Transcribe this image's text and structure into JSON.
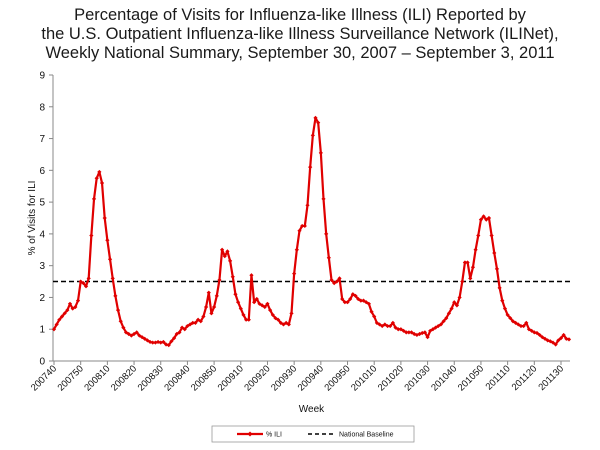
{
  "chart_data": {
    "type": "line",
    "title_lines": [
      "Percentage of Visits for Influenza-like Illness (ILI) Reported by",
      "the U.S. Outpatient Influenza-like Illness Surveillance Network (ILINet),",
      "Weekly National Summary, September 30, 2007 – September 3, 2011"
    ],
    "xlabel": "Week",
    "ylabel": "% of Visits for ILI",
    "ylim": [
      0,
      9
    ],
    "yticks": [
      0,
      1,
      2,
      3,
      4,
      5,
      6,
      7,
      8,
      9
    ],
    "xticks": [
      "200740",
      "200750",
      "200810",
      "200820",
      "200830",
      "200840",
      "200850",
      "200910",
      "200920",
      "200930",
      "200940",
      "200950",
      "201010",
      "201020",
      "201030",
      "201040",
      "201050",
      "201110",
      "201120",
      "201130"
    ],
    "grid": false,
    "legend_position": "bottom",
    "series": [
      {
        "name": "% ILI",
        "color": "#e00000",
        "marker": "diamond",
        "values": [
          1.0,
          1.15,
          1.3,
          1.4,
          1.5,
          1.6,
          1.8,
          1.65,
          1.7,
          1.9,
          2.5,
          2.45,
          2.35,
          2.6,
          3.95,
          5.1,
          5.75,
          5.95,
          5.6,
          4.5,
          3.8,
          3.2,
          2.6,
          2.05,
          1.6,
          1.25,
          1.05,
          0.9,
          0.85,
          0.8,
          0.85,
          0.9,
          0.8,
          0.75,
          0.7,
          0.65,
          0.6,
          0.58,
          0.58,
          0.6,
          0.58,
          0.6,
          0.52,
          0.5,
          0.62,
          0.72,
          0.85,
          0.9,
          1.05,
          1.0,
          1.1,
          1.15,
          1.2,
          1.2,
          1.3,
          1.25,
          1.4,
          1.7,
          2.15,
          1.5,
          1.7,
          2.05,
          2.55,
          3.5,
          3.3,
          3.45,
          3.15,
          2.65,
          2.1,
          1.85,
          1.65,
          1.45,
          1.3,
          1.3,
          2.7,
          1.85,
          1.95,
          1.8,
          1.75,
          1.7,
          1.8,
          1.6,
          1.45,
          1.35,
          1.3,
          1.2,
          1.15,
          1.2,
          1.15,
          1.5,
          2.75,
          3.5,
          4.1,
          4.25,
          4.25,
          4.9,
          6.1,
          7.1,
          7.65,
          7.5,
          6.55,
          5.1,
          4.0,
          3.25,
          2.55,
          2.45,
          2.5,
          2.6,
          1.95,
          1.85,
          1.85,
          1.95,
          2.1,
          2.05,
          1.95,
          1.9,
          1.9,
          1.85,
          1.8,
          1.55,
          1.4,
          1.2,
          1.15,
          1.1,
          1.15,
          1.1,
          1.1,
          1.2,
          1.05,
          1.0,
          1.0,
          0.95,
          0.9,
          0.9,
          0.9,
          0.85,
          0.82,
          0.85,
          0.88,
          0.9,
          0.75,
          0.95,
          1.0,
          1.05,
          1.1,
          1.15,
          1.25,
          1.35,
          1.5,
          1.65,
          1.85,
          1.75,
          2.0,
          2.5,
          3.1,
          3.1,
          2.6,
          2.95,
          3.5,
          3.95,
          4.45,
          4.55,
          4.45,
          4.5,
          3.95,
          3.4,
          2.9,
          2.3,
          1.9,
          1.65,
          1.45,
          1.35,
          1.25,
          1.2,
          1.15,
          1.1,
          1.1,
          1.2,
          1.0,
          0.95,
          0.9,
          0.88,
          0.82,
          0.75,
          0.7,
          0.65,
          0.62,
          0.58,
          0.52,
          0.65,
          0.72,
          0.82,
          0.7,
          0.68
        ]
      },
      {
        "name": "National Baseline",
        "color": "#000000",
        "style": "dashed",
        "values": [
          2.5
        ]
      }
    ]
  }
}
